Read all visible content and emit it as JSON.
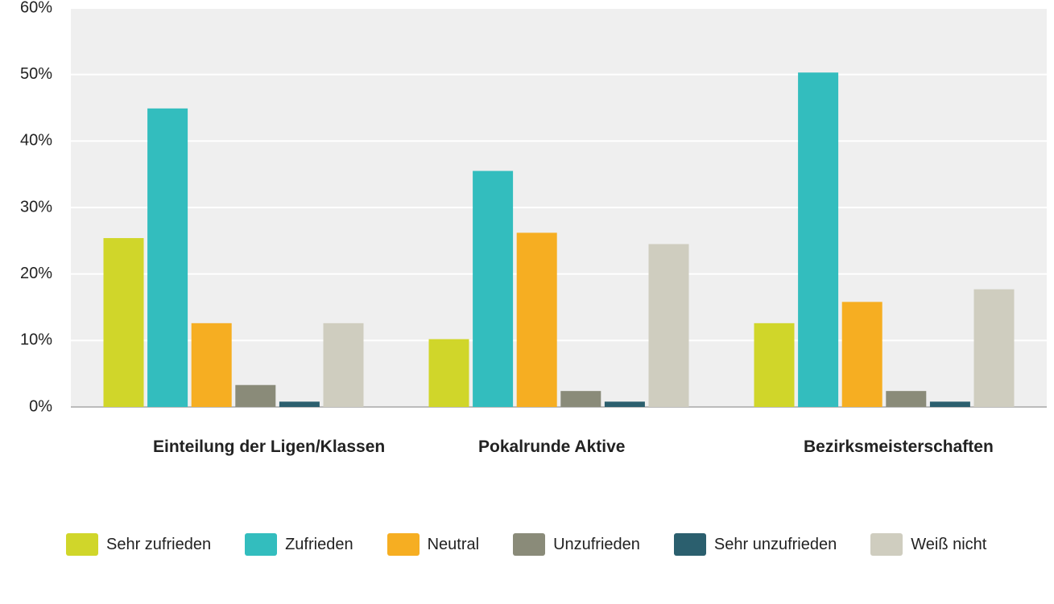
{
  "chart_data": {
    "type": "bar",
    "categories": [
      "Einteilung der Ligen/Klassen",
      "Pokalrunde Aktive",
      "Bezirksmeisterschaften"
    ],
    "series": [
      {
        "name": "Sehr zufrieden",
        "color": "#d0d62a",
        "values": [
          25.4,
          10.2,
          12.6
        ]
      },
      {
        "name": "Zufrieden",
        "color": "#33bdbe",
        "values": [
          44.9,
          35.5,
          50.3
        ]
      },
      {
        "name": "Neutral",
        "color": "#f6ae22",
        "values": [
          12.6,
          26.2,
          15.8
        ]
      },
      {
        "name": "Unzufrieden",
        "color": "#8a8b79",
        "values": [
          3.3,
          2.4,
          2.4
        ]
      },
      {
        "name": "Sehr unzufrieden",
        "color": "#2b5f6e",
        "values": [
          0.8,
          0.8,
          0.8
        ]
      },
      {
        "name": "Weiß nicht",
        "color": "#cfcdbf",
        "values": [
          12.6,
          24.5,
          17.7
        ]
      }
    ],
    "ylim": [
      0,
      60
    ],
    "yticks": [
      {
        "value": 0,
        "label": "0%"
      },
      {
        "value": 10,
        "label": "10%"
      },
      {
        "value": 20,
        "label": "20%"
      },
      {
        "value": 30,
        "label": "30%"
      },
      {
        "value": 40,
        "label": "40%"
      },
      {
        "value": 50,
        "label": "50%"
      },
      {
        "value": 60,
        "label": "60%"
      }
    ],
    "grid": true
  }
}
